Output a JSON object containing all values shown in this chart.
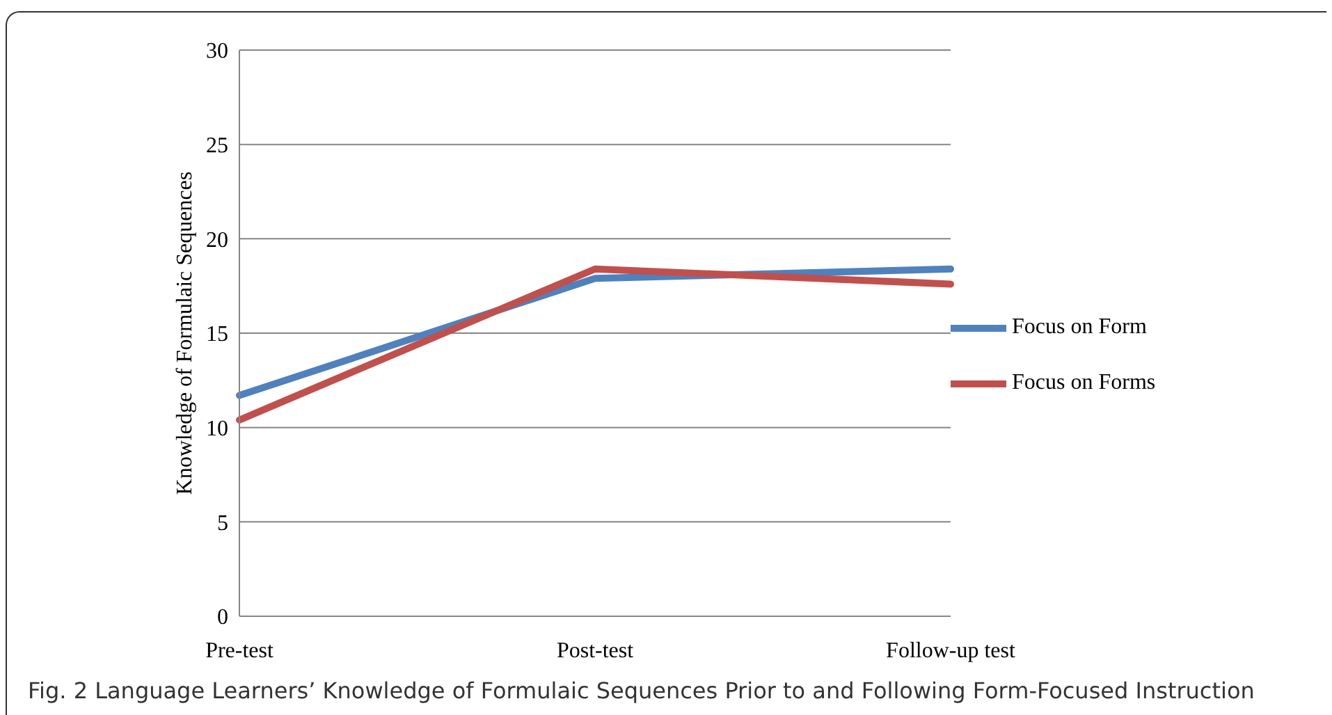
{
  "chart_data": {
    "type": "line",
    "ylabel": "Knowledge of Formulaic Sequences",
    "categories": [
      "Pre-test",
      "Post-test",
      "Follow-up test"
    ],
    "series": [
      {
        "name": "Focus on Form",
        "color": "#4f81bd",
        "values": [
          11.7,
          17.9,
          18.4
        ]
      },
      {
        "name": "Focus on Forms",
        "color": "#c0504d",
        "values": [
          10.4,
          18.4,
          17.6
        ]
      }
    ],
    "ylim": [
      0,
      30
    ],
    "yticks": [
      0,
      5,
      10,
      15,
      20,
      25,
      30
    ],
    "grid": "y",
    "legend": "right",
    "marker": "none",
    "line_style": "solid",
    "annotations": [
      "Fig. 2 Language Learners’ Knowledge of Formulaic Sequences Prior to and Following Form-Focused Instruction"
    ]
  }
}
